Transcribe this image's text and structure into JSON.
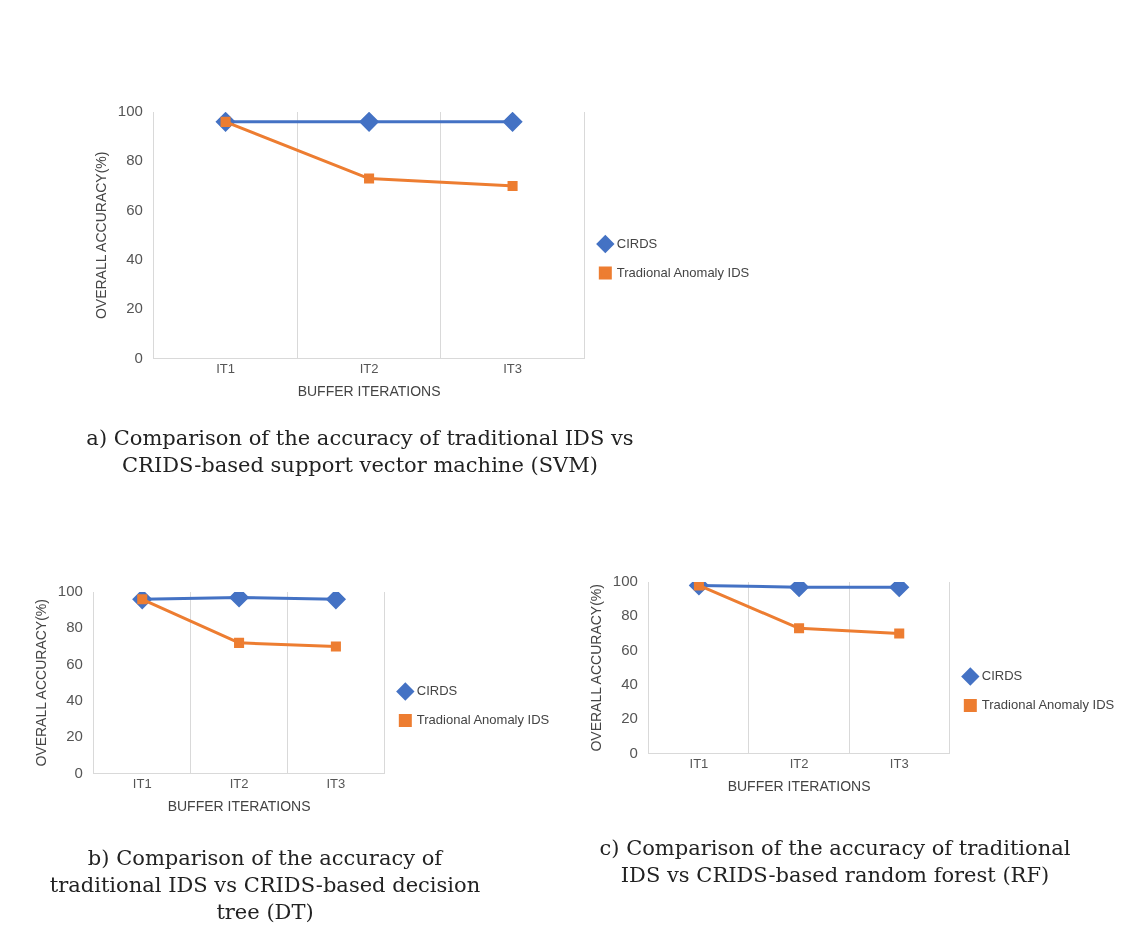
{
  "chart_data": [
    {
      "type": "line",
      "xlabel": "BUFFER ITERATIONS",
      "ylabel": "OVERALL ACCURACY(%)",
      "categories": [
        "IT1",
        "IT2",
        "IT3"
      ],
      "series": [
        {
          "name": "CIRDS",
          "color": "#4472c4",
          "marker": "diamond",
          "values": [
            96,
            96,
            96
          ]
        },
        {
          "name": "Tradional Anomaly IDS",
          "color": "#ed7d31",
          "marker": "square",
          "values": [
            96,
            73,
            70
          ]
        }
      ],
      "ylim": [
        0,
        100
      ],
      "yticks": [
        0,
        20,
        40,
        60,
        80,
        100
      ],
      "grid": "x",
      "legend": "right",
      "line_style": "solid",
      "annotations": [
        "a) Comparison of the accuracy of traditional IDS vs CRIDS-based support vector machine (SVM)"
      ]
    },
    {
      "type": "line",
      "xlabel": "BUFFER ITERATIONS",
      "ylabel": "OVERALL ACCURACY(%)",
      "categories": [
        "IT1",
        "IT2",
        "IT3"
      ],
      "series": [
        {
          "name": "CIRDS",
          "color": "#4472c4",
          "marker": "diamond",
          "values": [
            96,
            97,
            96
          ]
        },
        {
          "name": "Tradional Anomaly IDS",
          "color": "#ed7d31",
          "marker": "square",
          "values": [
            96,
            72,
            70
          ]
        }
      ],
      "ylim": [
        0,
        100
      ],
      "yticks": [
        0,
        20,
        40,
        60,
        80,
        100
      ],
      "grid": "x",
      "legend": "right",
      "line_style": "solid",
      "annotations": [
        "b) Comparison of the accuracy of traditional IDS vs CRIDS-based decision tree (DT)"
      ]
    },
    {
      "type": "line",
      "xlabel": "BUFFER ITERATIONS",
      "ylabel": "OVERALL ACCURACY(%)",
      "categories": [
        "IT1",
        "IT2",
        "IT3"
      ],
      "series": [
        {
          "name": "CIRDS",
          "color": "#4472c4",
          "marker": "diamond",
          "values": [
            98,
            97,
            97
          ]
        },
        {
          "name": "Tradional Anomaly IDS",
          "color": "#ed7d31",
          "marker": "square",
          "values": [
            98,
            73,
            70
          ]
        }
      ],
      "ylim": [
        0,
        100
      ],
      "yticks": [
        0,
        20,
        40,
        60,
        80,
        100
      ],
      "grid": "x",
      "legend": "right",
      "line_style": "solid",
      "annotations": [
        "c) Comparison of the accuracy of traditional IDS vs CRIDS-based random forest (RF)"
      ]
    }
  ]
}
